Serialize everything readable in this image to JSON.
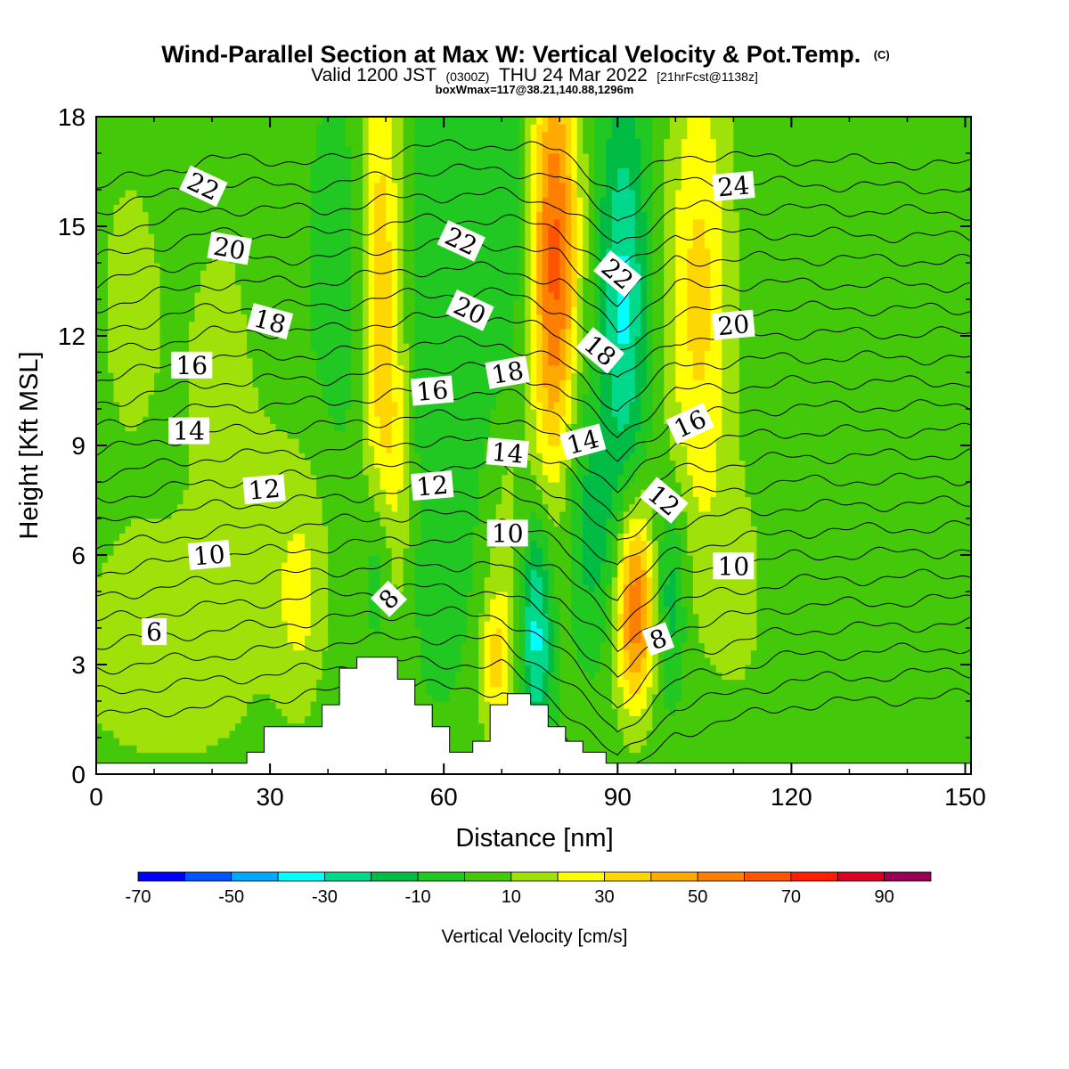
{
  "header": {
    "title_main": "Wind-Parallel Section at Max W: Vertical Velocity & Pot.Temp.",
    "title_mark": "(C)",
    "valid_prefix": "Valid 1200 JST",
    "valid_utc": "(0300Z)",
    "valid_date": "THU 24 Mar 2022",
    "valid_fcst": "[21hrFcst@1138z]",
    "boxwmax": "boxWmax=117@38.21,140.88,1296m"
  },
  "chart_data": {
    "type": "heatmap",
    "title": "Wind-Parallel Section at Max W: Vertical Velocity & Pot.Temp.",
    "xlabel": "Distance [nm]",
    "ylabel": "Height [Kft MSL]",
    "xlim": [
      0,
      151
    ],
    "ylim": [
      0,
      18
    ],
    "x_ticks": [
      "0",
      "30",
      "60",
      "90",
      "120",
      "150"
    ],
    "y_ticks": [
      "0",
      "3",
      "6",
      "9",
      "12",
      "15",
      "18"
    ],
    "x_tick_values": [
      0,
      30,
      60,
      90,
      120,
      150
    ],
    "y_tick_values": [
      0,
      3,
      6,
      9,
      12,
      15,
      18
    ],
    "grid": false,
    "colorbar": {
      "title": "Vertical Velocity [cm/s]",
      "levels": [
        -70,
        -60,
        -50,
        -40,
        -30,
        -20,
        -10,
        0,
        10,
        20,
        30,
        40,
        50,
        60,
        70,
        80,
        90,
        100
      ],
      "colors": [
        "#0000ff",
        "#0055ff",
        "#00a9ff",
        "#00ffff",
        "#00d98c",
        "#00bb44",
        "#22c822",
        "#44c80a",
        "#a0e10a",
        "#ffff00",
        "#ffd700",
        "#ffaa00",
        "#ff8000",
        "#ff5500",
        "#ff1e00",
        "#dd0022",
        "#990055",
        "#660088"
      ],
      "tick_labels": [
        "-70",
        "-50",
        "-30",
        "-10",
        "10",
        "30",
        "50",
        "70",
        "90"
      ],
      "tick_values": [
        -70,
        -50,
        -30,
        -10,
        10,
        30,
        50,
        70,
        90
      ]
    },
    "w_field": {
      "baseline": 3,
      "features": [
        {
          "x": 5,
          "z": 13,
          "sx": 6,
          "sz": 5,
          "w": 8
        },
        {
          "x": 10,
          "z": 3,
          "sx": 14,
          "sz": 2.5,
          "w": 10
        },
        {
          "x": 22,
          "z": 11,
          "sx": 7,
          "sz": 6,
          "w": 8
        },
        {
          "x": 35,
          "z": 4.5,
          "sx": 3,
          "sz": 2,
          "w": 14
        },
        {
          "x": 36,
          "z": 7,
          "sx": 6,
          "sz": 2.5,
          "w": 8
        },
        {
          "x": 42,
          "z": 13,
          "sx": 4,
          "sz": 4,
          "w": -10
        },
        {
          "x": 49,
          "z": 14,
          "sx": 2.5,
          "sz": 5,
          "w": 32
        },
        {
          "x": 51,
          "z": 8,
          "sx": 2.5,
          "sz": 3,
          "w": 20
        },
        {
          "x": 49,
          "z": 6,
          "sx": 2,
          "sz": 2,
          "w": -22
        },
        {
          "x": 58,
          "z": 12,
          "sx": 3,
          "sz": 5,
          "w": -12
        },
        {
          "x": 60,
          "z": 5,
          "sx": 4,
          "sz": 2,
          "w": -5
        },
        {
          "x": 69,
          "z": 3,
          "sx": 2,
          "sz": 1.5,
          "w": 28
        },
        {
          "x": 70,
          "z": 14,
          "sx": 5,
          "sz": 5,
          "w": -12
        },
        {
          "x": 71,
          "z": 7,
          "sx": 2.5,
          "sz": 3,
          "w": 14
        },
        {
          "x": 76,
          "z": 4,
          "sx": 2,
          "sz": 2.2,
          "w": -38
        },
        {
          "x": 79,
          "z": 14,
          "sx": 3,
          "sz": 4.5,
          "w": 62
        },
        {
          "x": 83,
          "z": 8,
          "sx": 2.5,
          "sz": 2.5,
          "w": -14
        },
        {
          "x": 87,
          "z": 6,
          "sx": 3,
          "sz": 2,
          "w": -12
        },
        {
          "x": 91,
          "z": 13,
          "sx": 3,
          "sz": 4,
          "w": -35
        },
        {
          "x": 93,
          "z": 4.6,
          "sx": 2.5,
          "sz": 2,
          "w": 58
        },
        {
          "x": 99,
          "z": 5,
          "sx": 2,
          "sz": 2,
          "w": -22
        },
        {
          "x": 104,
          "z": 13,
          "sx": 4,
          "sz": 5,
          "w": 30
        },
        {
          "x": 111,
          "z": 5,
          "sx": 4,
          "sz": 2.5,
          "w": 10
        },
        {
          "x": 126,
          "z": 13,
          "sx": 6,
          "sz": 5,
          "w": -3
        },
        {
          "x": 145,
          "z": 7,
          "sx": 5,
          "sz": 3,
          "w": 7
        }
      ]
    },
    "terrain": [
      [
        0,
        0.3
      ],
      [
        26,
        0.3
      ],
      [
        26,
        0.6
      ],
      [
        29,
        0.6
      ],
      [
        29,
        1.3
      ],
      [
        39,
        1.3
      ],
      [
        39,
        1.9
      ],
      [
        42,
        1.9
      ],
      [
        42,
        2.9
      ],
      [
        45,
        2.9
      ],
      [
        45,
        3.2
      ],
      [
        52,
        3.2
      ],
      [
        52,
        2.6
      ],
      [
        55,
        2.6
      ],
      [
        55,
        1.9
      ],
      [
        58,
        1.9
      ],
      [
        58,
        1.3
      ],
      [
        61,
        1.3
      ],
      [
        61,
        0.6
      ],
      [
        65,
        0.6
      ],
      [
        65,
        0.9
      ],
      [
        68,
        0.9
      ],
      [
        68,
        1.9
      ],
      [
        71,
        1.9
      ],
      [
        71,
        2.2
      ],
      [
        75,
        2.2
      ],
      [
        75,
        1.9
      ],
      [
        78,
        1.9
      ],
      [
        78,
        1.3
      ],
      [
        81,
        1.3
      ],
      [
        81,
        0.9
      ],
      [
        84,
        0.9
      ],
      [
        84,
        0.6
      ],
      [
        88,
        0.6
      ],
      [
        88,
        0.3
      ],
      [
        151,
        0.3
      ]
    ],
    "isentropes": {
      "levels": [
        4,
        5,
        6,
        7,
        8,
        9,
        10,
        11,
        12,
        13,
        14,
        15,
        16,
        17,
        18,
        19,
        20,
        21,
        22,
        23,
        24,
        25,
        26
      ],
      "heights": {
        "x": [
          0,
          20,
          40,
          55,
          70,
          80,
          90,
          100,
          120,
          150
        ],
        "h0": [
          4.2,
          4.6,
          4.9,
          5.1,
          5.0,
          4.1,
          2.6,
          4.0,
          4.6,
          4.8
        ],
        "slope": [
          0.66,
          0.68,
          0.66,
          0.67,
          0.68,
          0.72,
          0.74,
          0.72,
          0.68,
          0.66
        ]
      }
    },
    "contour_labels": [
      {
        "text": "22",
        "x": 18.5,
        "z": 16.1,
        "angle": 25
      },
      {
        "text": "20",
        "x": 23,
        "z": 14.4,
        "angle": 10
      },
      {
        "text": "18",
        "x": 30,
        "z": 12.4,
        "angle": 15
      },
      {
        "text": "16",
        "x": 16.5,
        "z": 11.2,
        "angle": 0
      },
      {
        "text": "14",
        "x": 16,
        "z": 9.4,
        "angle": 0
      },
      {
        "text": "12",
        "x": 29,
        "z": 7.8,
        "angle": -5
      },
      {
        "text": "10",
        "x": 19.5,
        "z": 6.0,
        "angle": -5
      },
      {
        "text": "6",
        "x": 10,
        "z": 3.9,
        "angle": 0
      },
      {
        "text": "8",
        "x": 50.5,
        "z": 4.8,
        "angle": -45
      },
      {
        "text": "22",
        "x": 63,
        "z": 14.6,
        "angle": 25
      },
      {
        "text": "20",
        "x": 64.5,
        "z": 12.7,
        "angle": 25
      },
      {
        "text": "16",
        "x": 58,
        "z": 10.5,
        "angle": -5
      },
      {
        "text": "12",
        "x": 58,
        "z": 7.9,
        "angle": -5
      },
      {
        "text": "18",
        "x": 71,
        "z": 11.0,
        "angle": -10
      },
      {
        "text": "14",
        "x": 71,
        "z": 8.8,
        "angle": 5
      },
      {
        "text": "10",
        "x": 71,
        "z": 6.6,
        "angle": 0
      },
      {
        "text": "14",
        "x": 84,
        "z": 9.1,
        "angle": -15
      },
      {
        "text": "18",
        "x": 87,
        "z": 11.6,
        "angle": 40
      },
      {
        "text": "22",
        "x": 90,
        "z": 13.7,
        "angle": 40
      },
      {
        "text": "12",
        "x": 98,
        "z": 7.5,
        "angle": 40
      },
      {
        "text": "8",
        "x": 97,
        "z": 3.7,
        "angle": -20
      },
      {
        "text": "16",
        "x": 102.5,
        "z": 9.6,
        "angle": -25
      },
      {
        "text": "20",
        "x": 110,
        "z": 12.3,
        "angle": -5
      },
      {
        "text": "24",
        "x": 110,
        "z": 16.1,
        "angle": -5
      },
      {
        "text": "10",
        "x": 110,
        "z": 5.7,
        "angle": 0
      }
    ]
  }
}
